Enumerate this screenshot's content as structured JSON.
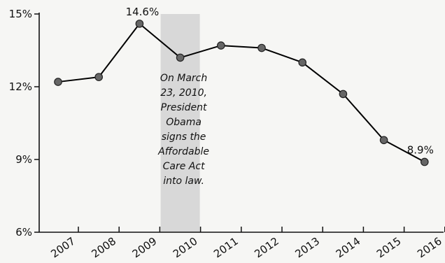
{
  "chart_data": {
    "type": "line",
    "title": "",
    "xlabel": "",
    "ylabel": "",
    "ylim": [
      6,
      15
    ],
    "grid": false,
    "categories": [
      "2007",
      "2008",
      "2009",
      "2010",
      "2011",
      "2012",
      "2013",
      "2014",
      "2015",
      "2016"
    ],
    "yticks": [
      {
        "value": 6,
        "label": "6%"
      },
      {
        "value": 9,
        "label": "9%"
      },
      {
        "value": 12,
        "label": "12%"
      },
      {
        "value": 15,
        "label": "15%"
      }
    ],
    "series": [
      {
        "values": [
          12.2,
          12.4,
          14.6,
          13.2,
          13.7,
          13.6,
          13.0,
          11.7,
          9.8,
          8.9
        ],
        "color": "#000000",
        "marker_color": "#666666"
      }
    ],
    "data_labels": [
      {
        "index": 2,
        "text": "14.6%"
      },
      {
        "index": 9,
        "text": "8.9%"
      }
    ],
    "highlight": {
      "category": "2010",
      "color": "#d8d8d8",
      "annotation_lines": [
        "On March",
        "23, 2010,",
        "President",
        "Obama",
        "signs the",
        "Affordable",
        "Care Act",
        "into law."
      ]
    }
  }
}
